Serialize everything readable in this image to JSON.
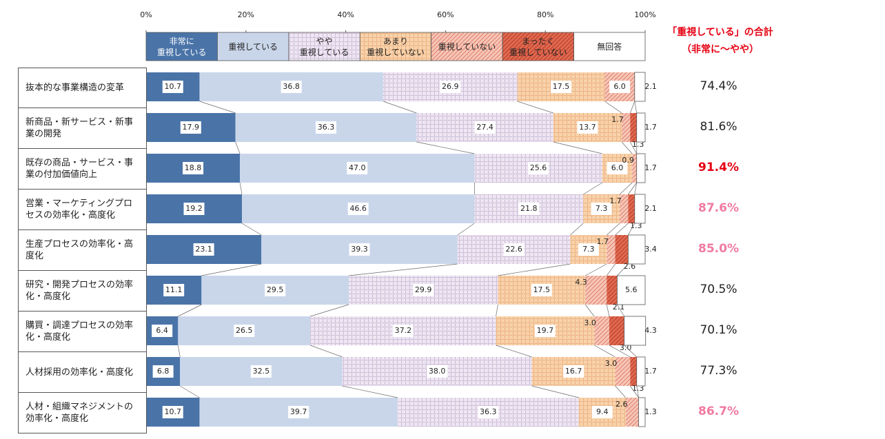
{
  "chart_data": {
    "type": "stacked-bar-horizontal",
    "total_header": "「重視している」の合計",
    "total_subheader": "（非常に～やや）",
    "xlim": [
      0,
      100
    ],
    "xticks": [
      {
        "value": 0,
        "label": "0%"
      },
      {
        "value": 20,
        "label": "20%"
      },
      {
        "value": 40,
        "label": "40%"
      },
      {
        "value": 60,
        "label": "60%"
      },
      {
        "value": 80,
        "label": "80%"
      },
      {
        "value": 100,
        "label": "100%"
      }
    ],
    "categories": [
      "抜本的な事業構造の変革",
      "新商品・新サービス・新事業の開発",
      "既存の商品・サービス・事業の付加価値向上",
      "営業・マーケティングプロセスの効率化・高度化",
      "生産プロセスの効率化・高度化",
      "研究・開発プロセスの効率化・高度化",
      "購買・調達プロセスの効率化・高度化",
      "人材採用の効率化・高度化",
      "人材・組織マネジメントの効率化・高度化"
    ],
    "series": [
      {
        "name": "非常に\n重視している",
        "color": "#4a74a8",
        "text_color": "#ffffff",
        "pattern": "solid",
        "values": [
          10.7,
          17.9,
          18.8,
          19.2,
          23.1,
          11.1,
          6.4,
          6.8,
          10.7
        ],
        "value_labels": [
          "10.7",
          "17.9",
          "18.8",
          "19.2",
          "23.1",
          "11.1",
          "6.4",
          "6.8",
          "10.7"
        ]
      },
      {
        "name": "重視している",
        "color": "#c9d6ea",
        "pattern": "solid",
        "values": [
          36.8,
          36.3,
          47.0,
          46.6,
          39.3,
          29.5,
          26.5,
          32.5,
          39.7
        ],
        "value_labels": [
          "36.8",
          "36.3",
          "47.0",
          "46.6",
          "39.3",
          "29.5",
          "26.5",
          "32.5",
          "39.7"
        ]
      },
      {
        "name": "やや\n重視している",
        "color": "#eee6f2",
        "pattern": "grid",
        "pattern_color": "#9a7fb0",
        "values": [
          26.9,
          27.4,
          25.6,
          21.8,
          22.6,
          29.9,
          37.2,
          38.0,
          36.3
        ],
        "value_labels": [
          "26.9",
          "27.4",
          "25.6",
          "21.8",
          "22.6",
          "29.9",
          "37.2",
          "38.0",
          "36.3"
        ]
      },
      {
        "name": "あまり\n重視していない",
        "color": "#f8d2aa",
        "pattern": "grid",
        "pattern_color": "#d9824a",
        "values": [
          17.5,
          13.7,
          6.0,
          7.3,
          7.3,
          17.5,
          19.7,
          16.7,
          9.4
        ],
        "value_labels": [
          "17.5",
          "13.7",
          "6.0",
          "7.3",
          "7.3",
          "17.5",
          "19.7",
          "16.7",
          "9.4"
        ]
      },
      {
        "name": "重視していない",
        "color": "#f6c6b8",
        "pattern": "hatch",
        "pattern_color": "#e0806a",
        "values": [
          6.0,
          1.7,
          0.9,
          1.7,
          1.7,
          4.3,
          3.0,
          3.0,
          2.6
        ],
        "value_labels": [
          "6.0",
          "1.7",
          "0.9",
          "1.7",
          "1.7",
          "4.3",
          "3.0",
          "3.0",
          "2.6"
        ]
      },
      {
        "name": "まったく\n重視していない",
        "color": "#e06a50",
        "pattern": "hatch",
        "pattern_color": "#b83a28",
        "values": [
          0,
          1.3,
          0,
          1.3,
          2.6,
          2.1,
          3.0,
          1.3,
          0
        ],
        "value_labels": [
          null,
          "1.3",
          null,
          "1.3",
          "2.6",
          "2.1",
          "3.0",
          "1.3",
          null
        ]
      },
      {
        "name": "無回答",
        "color": "#ffffff",
        "pattern": "solid",
        "values": [
          2.1,
          1.7,
          1.7,
          2.1,
          3.4,
          5.6,
          4.3,
          1.7,
          1.3
        ],
        "value_labels": [
          "2.1",
          "1.7",
          "1.7",
          "2.1",
          "3.4",
          "5.6",
          "4.3",
          "1.7",
          "1.3"
        ]
      }
    ],
    "totals": [
      {
        "value": 74.4,
        "label": "74.4%",
        "color": "#222222"
      },
      {
        "value": 81.6,
        "label": "81.6%",
        "color": "#222222"
      },
      {
        "value": 91.4,
        "label": "91.4%",
        "color": "#e60012"
      },
      {
        "value": 87.6,
        "label": "87.6%",
        "color": "#f07aa0"
      },
      {
        "value": 85.0,
        "label": "85.0%",
        "color": "#f07aa0"
      },
      {
        "value": 70.5,
        "label": "70.5%",
        "color": "#222222"
      },
      {
        "value": 70.1,
        "label": "70.1%",
        "color": "#222222"
      },
      {
        "value": 77.3,
        "label": "77.3%",
        "color": "#222222"
      },
      {
        "value": 86.7,
        "label": "86.7%",
        "color": "#f07aa0"
      }
    ]
  }
}
